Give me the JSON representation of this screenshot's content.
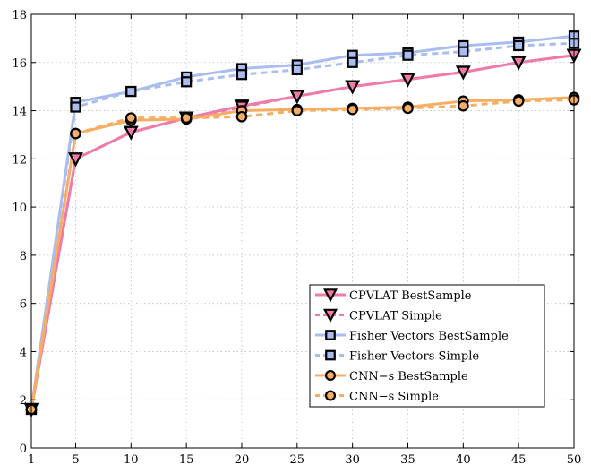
{
  "chart_data": {
    "type": "line",
    "title": "",
    "xlabel": "",
    "ylabel": "",
    "xlim": [
      1,
      50
    ],
    "ylim": [
      0,
      18
    ],
    "xticks": [
      1,
      5,
      10,
      15,
      20,
      25,
      30,
      35,
      40,
      45,
      50
    ],
    "yticks": [
      0,
      2,
      4,
      6,
      8,
      10,
      12,
      14,
      16,
      18
    ],
    "grid": true,
    "legend_position": "bottom-right",
    "x": [
      1,
      5,
      10,
      15,
      20,
      25,
      30,
      35,
      40,
      45,
      50
    ],
    "series": [
      {
        "name": "CPVLAT BestSample",
        "color": "#f07aa8",
        "dash": false,
        "marker": "triangle-down",
        "values": [
          1.6,
          12.0,
          13.1,
          13.7,
          14.2,
          14.6,
          15.0,
          15.3,
          15.6,
          16.0,
          16.3
        ]
      },
      {
        "name": "CPVLAT Simple",
        "color": "#f07aa8",
        "dash": true,
        "marker": "triangle-down",
        "values": [
          1.6,
          12.0,
          13.1,
          13.7,
          14.15,
          14.6,
          15.0,
          15.3,
          15.6,
          16.0,
          16.3
        ]
      },
      {
        "name": "Fisher Vectors BestSample",
        "color": "#a9bdf0",
        "dash": false,
        "marker": "square",
        "values": [
          1.6,
          14.35,
          14.8,
          15.4,
          15.75,
          15.9,
          16.3,
          16.4,
          16.7,
          16.85,
          17.1
        ]
      },
      {
        "name": "Fisher Vectors Simple",
        "color": "#a9bdf0",
        "dash": true,
        "marker": "square",
        "values": [
          1.6,
          14.15,
          14.8,
          15.2,
          15.5,
          15.7,
          16.0,
          16.3,
          16.45,
          16.7,
          16.8
        ]
      },
      {
        "name": "CNN−s BestSample",
        "color": "#f7ad62",
        "dash": false,
        "marker": "circle",
        "values": [
          1.6,
          13.05,
          13.6,
          13.65,
          14.0,
          14.05,
          14.1,
          14.15,
          14.4,
          14.45,
          14.55
        ]
      },
      {
        "name": "CNN−s Simple",
        "color": "#f7ad62",
        "dash": true,
        "marker": "circle",
        "values": [
          1.6,
          13.05,
          13.7,
          13.7,
          13.75,
          14.0,
          14.05,
          14.1,
          14.2,
          14.4,
          14.45
        ]
      }
    ]
  }
}
